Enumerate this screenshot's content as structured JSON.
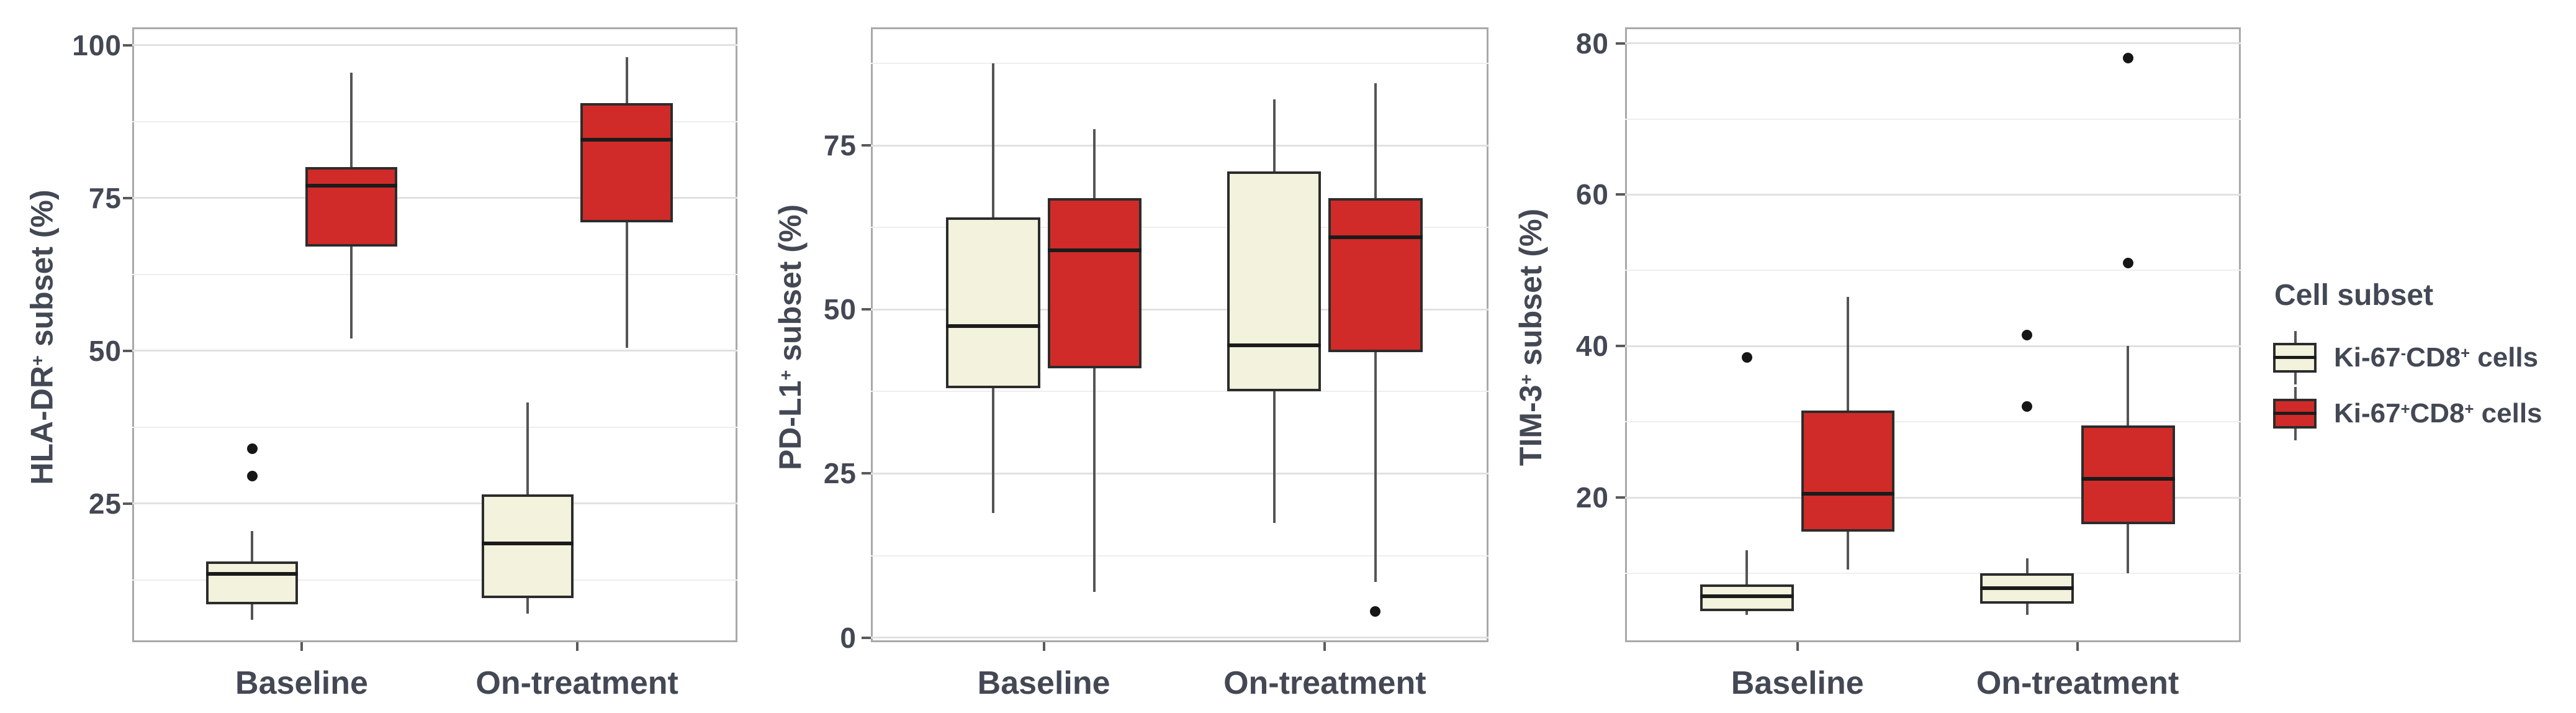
{
  "legend": {
    "title": "Cell subset",
    "items": [
      {
        "label": "Ki-67-CD8+ cells",
        "label_parts": [
          {
            "text": "Ki-67"
          },
          {
            "sup": "-"
          },
          {
            "text": "CD8"
          },
          {
            "sup": "+"
          },
          {
            "text": " cells"
          }
        ],
        "color": "#f2f2dd"
      },
      {
        "label": "Ki-67+CD8+ cells",
        "label_parts": [
          {
            "text": "Ki-67"
          },
          {
            "sup": "+"
          },
          {
            "text": "CD8"
          },
          {
            "sup": "+"
          },
          {
            "text": " cells"
          }
        ],
        "color": "#d02b29"
      }
    ]
  },
  "x_axis": {
    "categories": [
      "Baseline",
      "On-treatment"
    ]
  },
  "chart_data": [
    {
      "type": "boxplot",
      "ylabel": "HLA-DR+ subset (%)",
      "ylabel_parts": [
        {
          "text": "HLA-DR"
        },
        {
          "sup": "+"
        },
        {
          "text": " subset (%)"
        }
      ],
      "categories": [
        "Baseline",
        "On-treatment"
      ],
      "yticks": [
        25,
        50,
        75,
        100
      ],
      "minor_gridlines": [
        12.5,
        37.5,
        62.5,
        87.5
      ],
      "ylim": [
        2.3,
        102.9
      ],
      "grid": true,
      "legend_position": "right",
      "series": [
        {
          "name": "Ki-67-CD8+ cells",
          "color": "#f2f2dd",
          "boxes": [
            {
              "category": "Baseline",
              "whisker_low": 6,
              "q1": 8.5,
              "median": 13.5,
              "q3": 15.5,
              "whisker_high": 20.5,
              "outliers": [
                29.5,
                34
              ]
            },
            {
              "category": "On-treatment",
              "whisker_low": 7,
              "q1": 9.5,
              "median": 18.5,
              "q3": 26.5,
              "whisker_high": 41.5,
              "outliers": []
            }
          ]
        },
        {
          "name": "Ki-67+CD8+ cells",
          "color": "#d02b29",
          "boxes": [
            {
              "category": "Baseline",
              "whisker_low": 52,
              "q1": 67,
              "median": 77,
              "q3": 80,
              "whisker_high": 95.5,
              "outliers": []
            },
            {
              "category": "On-treatment",
              "whisker_low": 50.5,
              "q1": 71,
              "median": 84.5,
              "q3": 90.5,
              "whisker_high": 98,
              "outliers": []
            }
          ]
        }
      ]
    },
    {
      "type": "boxplot",
      "ylabel": "PD-L1+ subset (%)",
      "ylabel_parts": [
        {
          "text": "PD-L1"
        },
        {
          "sup": "+"
        },
        {
          "text": " subset (%)"
        }
      ],
      "categories": [
        "Baseline",
        "On-treatment"
      ],
      "yticks": [
        0,
        25,
        50,
        75
      ],
      "minor_gridlines": [
        12.5,
        37.5,
        62.5,
        87.5
      ],
      "ylim": [
        -0.7,
        93
      ],
      "grid": true,
      "legend_position": "right",
      "series": [
        {
          "name": "Ki-67-CD8+ cells",
          "color": "#f2f2dd",
          "boxes": [
            {
              "category": "Baseline",
              "whisker_low": 19,
              "q1": 38,
              "median": 47.5,
              "q3": 64,
              "whisker_high": 87.5,
              "outliers": []
            },
            {
              "category": "On-treatment",
              "whisker_low": 17.5,
              "q1": 37.5,
              "median": 44.5,
              "q3": 71,
              "whisker_high": 82,
              "outliers": []
            }
          ]
        },
        {
          "name": "Ki-67+CD8+ cells",
          "color": "#d02b29",
          "boxes": [
            {
              "category": "Baseline",
              "whisker_low": 7,
              "q1": 41,
              "median": 59,
              "q3": 67,
              "whisker_high": 77.5,
              "outliers": []
            },
            {
              "category": "On-treatment",
              "whisker_low": 8.5,
              "q1": 43.5,
              "median": 61,
              "q3": 67,
              "whisker_high": 84.5,
              "outliers": [
                4
              ]
            }
          ]
        }
      ]
    },
    {
      "type": "boxplot",
      "ylabel": "TIM-3+ subset (%)",
      "ylabel_parts": [
        {
          "text": "TIM-3"
        },
        {
          "sup": "+"
        },
        {
          "text": " subset (%)"
        }
      ],
      "categories": [
        "Baseline",
        "On-treatment"
      ],
      "yticks": [
        20,
        40,
        60,
        80
      ],
      "minor_gridlines": [
        10,
        30,
        50,
        70
      ],
      "ylim": [
        0.9,
        82.1
      ],
      "grid": true,
      "legend_position": "right",
      "series": [
        {
          "name": "Ki-67-CD8+ cells",
          "color": "#f2f2dd",
          "boxes": [
            {
              "category": "Baseline",
              "whisker_low": 4.5,
              "q1": 5,
              "median": 7,
              "q3": 8.5,
              "whisker_high": 13,
              "outliers": [
                38.5
              ]
            },
            {
              "category": "On-treatment",
              "whisker_low": 4.5,
              "q1": 6,
              "median": 8,
              "q3": 10,
              "whisker_high": 12,
              "outliers": [
                32,
                41.5
              ]
            }
          ]
        },
        {
          "name": "Ki-67+CD8+ cells",
          "color": "#d02b29",
          "boxes": [
            {
              "category": "Baseline",
              "whisker_low": 10.5,
              "q1": 15.5,
              "median": 20.5,
              "q3": 31.5,
              "whisker_high": 46.5,
              "outliers": []
            },
            {
              "category": "On-treatment",
              "whisker_low": 10,
              "q1": 16.5,
              "median": 22.5,
              "q3": 29.5,
              "whisker_high": 40,
              "outliers": [
                51,
                78
              ]
            }
          ]
        }
      ]
    }
  ]
}
